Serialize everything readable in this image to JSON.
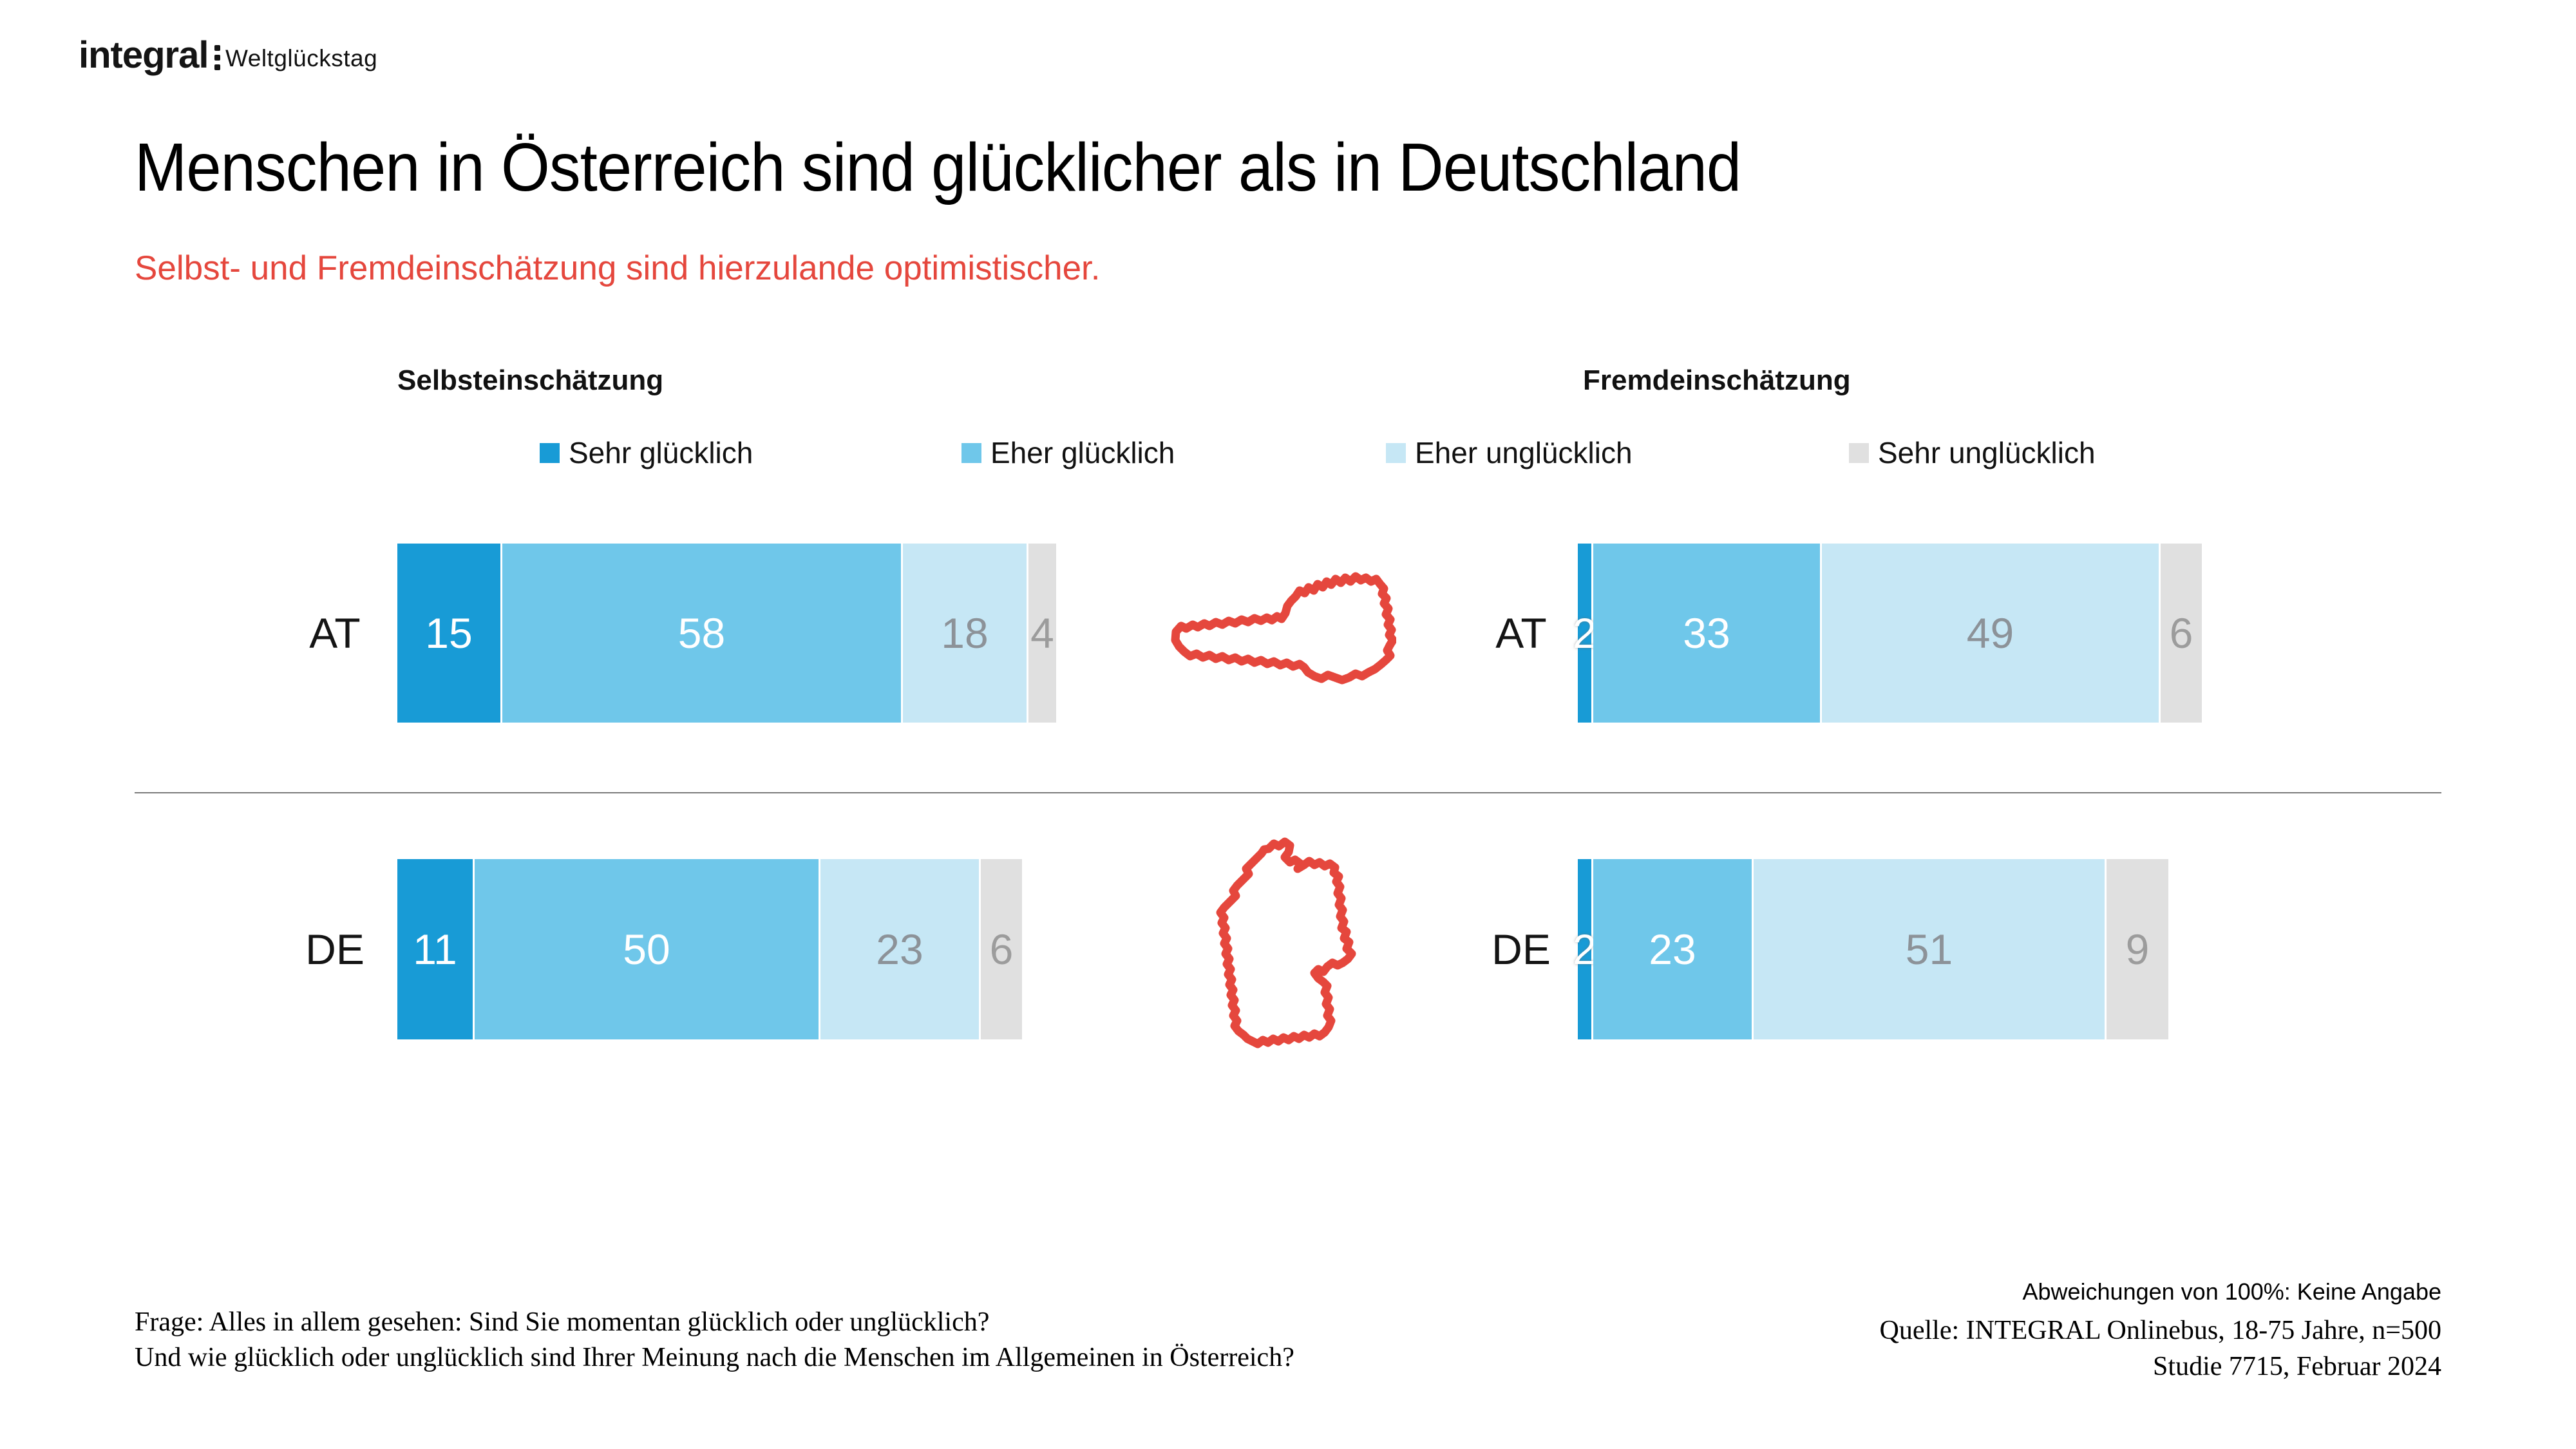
{
  "brand": {
    "logo": "integral",
    "event": "Weltglückstag"
  },
  "title": "Menschen in Österreich sind glücklicher als in Deutschland",
  "subtitle": "Selbst- und Fremdeinschätzung sind hierzulande optimistischer.",
  "colors": {
    "sehr_gluecklich": "#189BD6",
    "eher_gluecklich": "#6FC7EA",
    "eher_ungluecklich": "#C6E7F5",
    "sehr_ungluecklich": "#E0E0E0",
    "accent_red": "#E5473D",
    "label_on_light_blue": "#8C9298",
    "label_on_gray": "#9C9C9C"
  },
  "chart_data": {
    "type": "bar",
    "stacked": true,
    "orientation": "horizontal",
    "unit": "%",
    "xmax": 100,
    "legend": [
      {
        "label": "Sehr glücklich",
        "color": "#189BD6"
      },
      {
        "label": "Eher glücklich",
        "color": "#6FC7EA"
      },
      {
        "label": "Eher unglücklich",
        "color": "#C6E7F5"
      },
      {
        "label": "Sehr unglücklich",
        "color": "#E0E0E0"
      }
    ],
    "panels": [
      {
        "title": "Selbsteinschätzung",
        "rows": [
          {
            "country": "AT",
            "values": [
              15,
              58,
              18,
              4
            ]
          },
          {
            "country": "DE",
            "values": [
              11,
              50,
              23,
              6
            ]
          }
        ]
      },
      {
        "title": "Fremdeinschätzung",
        "rows": [
          {
            "country": "AT",
            "values": [
              2,
              33,
              49,
              6
            ]
          },
          {
            "country": "DE",
            "values": [
              2,
              23,
              51,
              9
            ]
          }
        ]
      }
    ]
  },
  "footnotes": {
    "question_line1": "Frage: Alles in allem gesehen: Sind Sie momentan glücklich oder unglücklich?",
    "question_line2": "Und wie glücklich oder unglücklich sind Ihrer Meinung nach die Menschen im Allgemeinen in Österreich?",
    "deviation_note": "Abweichungen von 100%: Keine Angabe",
    "source": "Quelle: INTEGRAL Onlinebus, 18-75 Jahre, n=500",
    "study": "Studie 7715, Februar 2024"
  }
}
